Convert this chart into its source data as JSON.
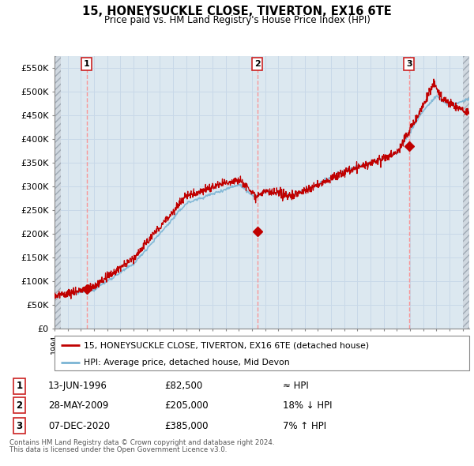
{
  "title": "15, HONEYSUCKLE CLOSE, TIVERTON, EX16 6TE",
  "subtitle": "Price paid vs. HM Land Registry's House Price Index (HPI)",
  "ylim": [
    0,
    575000
  ],
  "yticks": [
    0,
    50000,
    100000,
    150000,
    200000,
    250000,
    300000,
    350000,
    400000,
    450000,
    500000,
    550000
  ],
  "ytick_labels": [
    "£0",
    "£50K",
    "£100K",
    "£150K",
    "£200K",
    "£250K",
    "£300K",
    "£350K",
    "£400K",
    "£450K",
    "£500K",
    "£550K"
  ],
  "hpi_color": "#7ab4d4",
  "price_color": "#c00000",
  "sale_marker_color": "#c00000",
  "grid_color": "#c8d8e8",
  "bg_color": "#dce8f0",
  "legend_label_price": "15, HONEYSUCKLE CLOSE, TIVERTON, EX16 6TE (detached house)",
  "legend_label_hpi": "HPI: Average price, detached house, Mid Devon",
  "sales": [
    {
      "label": "1",
      "date_num": 1996.45,
      "price": 82500,
      "date_str": "13-JUN-1996",
      "hpi_rel": "≈ HPI"
    },
    {
      "label": "2",
      "date_num": 2009.41,
      "price": 205000,
      "date_str": "28-MAY-2009",
      "hpi_rel": "18% ↓ HPI"
    },
    {
      "label": "3",
      "date_num": 2020.93,
      "price": 385000,
      "date_str": "07-DEC-2020",
      "hpi_rel": "7% ↑ HPI"
    }
  ],
  "footer_line1": "Contains HM Land Registry data © Crown copyright and database right 2024.",
  "footer_line2": "This data is licensed under the Open Government Licence v3.0.",
  "xlim_start": 1994.0,
  "xlim_end": 2025.5,
  "hpi_start_year": 1995.0
}
